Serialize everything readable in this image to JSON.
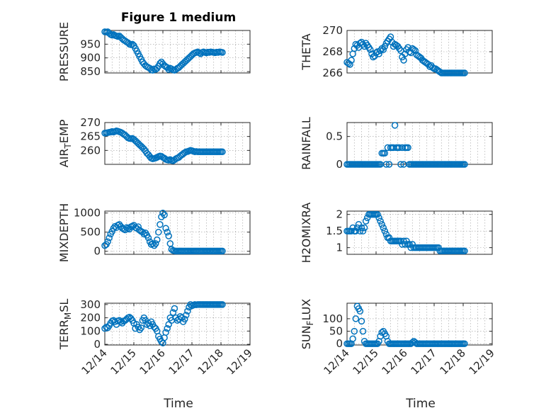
{
  "figure_title": "Figure 1 medium",
  "x_label": "Time",
  "x_tick_labels": [
    "12/14",
    "12/15",
    "12/16",
    "12/17",
    "12/18",
    "12/19"
  ],
  "marker_color": "#0072BD",
  "chart_data": [
    {
      "type": "scatter",
      "ylabel": "PRESSURE",
      "ylim": [
        845,
        1000
      ],
      "yticks": [
        850,
        900,
        950
      ],
      "xlim": [
        0,
        5
      ],
      "grid": true,
      "x": [
        0,
        0.05,
        0.1,
        0.15,
        0.2,
        0.25,
        0.3,
        0.35,
        0.4,
        0.45,
        0.5,
        0.55,
        0.6,
        0.65,
        0.7,
        0.75,
        0.8,
        0.85,
        0.9,
        0.95,
        1.0,
        1.05,
        1.1,
        1.15,
        1.2,
        1.25,
        1.3,
        1.35,
        1.4,
        1.45,
        1.5,
        1.55,
        1.6,
        1.65,
        1.7,
        1.75,
        1.8,
        1.85,
        1.9,
        1.95,
        2.0,
        2.05,
        2.1,
        2.15,
        2.2,
        2.25,
        2.3,
        2.35,
        2.4,
        2.45,
        2.5,
        2.55,
        2.6,
        2.65,
        2.7,
        2.75,
        2.8,
        2.85,
        2.9,
        2.95,
        3.0,
        3.05,
        3.1,
        3.15,
        3.2,
        3.25,
        3.3,
        3.35,
        3.4,
        3.45,
        3.5,
        3.55,
        3.6,
        3.65,
        3.7,
        3.75,
        3.8,
        3.85,
        3.9,
        3.95,
        4.0,
        4.05
      ],
      "y": [
        995,
        994,
        995,
        990,
        985,
        983,
        985,
        982,
        980,
        978,
        980,
        975,
        970,
        965,
        962,
        958,
        955,
        950,
        948,
        950,
        945,
        935,
        925,
        915,
        905,
        895,
        885,
        878,
        872,
        868,
        865,
        862,
        856,
        855,
        860,
        858,
        862,
        870,
        880,
        885,
        878,
        872,
        868,
        865,
        858,
        862,
        860,
        856,
        855,
        858,
        862,
        865,
        870,
        875,
        880,
        885,
        890,
        895,
        900,
        905,
        910,
        915,
        918,
        920,
        922,
        918,
        915,
        920,
        922,
        920,
        918,
        921,
        920,
        922,
        921,
        920,
        919,
        921,
        920,
        922,
        921,
        920
      ]
    },
    {
      "type": "scatter",
      "ylabel": "THETA",
      "ylim": [
        266,
        270
      ],
      "yticks": [
        266,
        268,
        270
      ],
      "xlim": [
        0,
        5
      ],
      "grid": true,
      "x": [
        0,
        0.05,
        0.1,
        0.15,
        0.2,
        0.25,
        0.3,
        0.35,
        0.4,
        0.45,
        0.5,
        0.55,
        0.6,
        0.65,
        0.7,
        0.75,
        0.8,
        0.85,
        0.9,
        0.95,
        1.0,
        1.05,
        1.1,
        1.15,
        1.2,
        1.25,
        1.3,
        1.35,
        1.4,
        1.45,
        1.5,
        1.55,
        1.6,
        1.65,
        1.7,
        1.75,
        1.8,
        1.85,
        1.9,
        1.95,
        2.0,
        2.05,
        2.1,
        2.15,
        2.2,
        2.25,
        2.3,
        2.35,
        2.4,
        2.45,
        2.5,
        2.55,
        2.6,
        2.65,
        2.7,
        2.75,
        2.8,
        2.85,
        2.9,
        2.95,
        3.0,
        3.05,
        3.1,
        3.15,
        3.2,
        3.25,
        3.3,
        3.35,
        3.4,
        3.45,
        3.5,
        3.55,
        3.6,
        3.65,
        3.7,
        3.75,
        3.8,
        3.85,
        3.9,
        3.95,
        4.0,
        4.05
      ],
      "y": [
        267.0,
        266.9,
        266.8,
        267.2,
        267.8,
        268.3,
        268.7,
        268.6,
        268.4,
        268.8,
        268.9,
        268.7,
        268.5,
        268.8,
        268.6,
        268.4,
        268.2,
        267.8,
        267.5,
        267.6,
        267.9,
        268.0,
        267.8,
        268.1,
        268.3,
        268.2,
        268.5,
        268.8,
        269.0,
        269.2,
        269.4,
        268.9,
        268.5,
        268.7,
        268.6,
        268.5,
        268.3,
        268.1,
        267.5,
        267.2,
        267.8,
        268.2,
        268.4,
        268.0,
        267.9,
        268.3,
        268.2,
        268.1,
        267.7,
        267.6,
        267.5,
        267.4,
        267.2,
        267.1,
        267.0,
        266.9,
        266.8,
        266.6,
        266.7,
        266.5,
        266.4,
        266.4,
        266.3,
        266.2,
        266.1,
        266.0,
        266.0,
        266.0,
        266.0,
        266.0,
        266.0,
        266.0,
        266.0,
        266.0,
        266.0,
        266.0,
        266.0,
        266.0,
        266.0,
        266.0,
        266.0,
        266.0
      ]
    },
    {
      "type": "scatter",
      "ylabel": "AIR_TEMP",
      "ylim": [
        255,
        270
      ],
      "yticks": [
        260,
        265,
        270
      ],
      "xlim": [
        0,
        5
      ],
      "grid": true,
      "x": [
        0,
        0.05,
        0.1,
        0.15,
        0.2,
        0.25,
        0.3,
        0.35,
        0.4,
        0.45,
        0.5,
        0.55,
        0.6,
        0.65,
        0.7,
        0.75,
        0.8,
        0.85,
        0.9,
        0.95,
        1.0,
        1.05,
        1.1,
        1.15,
        1.2,
        1.25,
        1.3,
        1.35,
        1.4,
        1.45,
        1.5,
        1.55,
        1.6,
        1.65,
        1.7,
        1.75,
        1.8,
        1.85,
        1.9,
        1.95,
        2.0,
        2.05,
        2.1,
        2.15,
        2.2,
        2.25,
        2.3,
        2.35,
        2.4,
        2.45,
        2.5,
        2.55,
        2.6,
        2.65,
        2.7,
        2.75,
        2.8,
        2.85,
        2.9,
        2.95,
        3.0,
        3.05,
        3.1,
        3.15,
        3.2,
        3.25,
        3.3,
        3.35,
        3.4,
        3.45,
        3.5,
        3.55,
        3.6,
        3.65,
        3.7,
        3.75,
        3.8,
        3.85,
        3.9,
        3.95,
        4.0,
        4.05
      ],
      "y": [
        266.2,
        266.3,
        266.4,
        266.5,
        266.6,
        266.8,
        266.6,
        266.8,
        267.0,
        266.9,
        266.7,
        266.5,
        266.2,
        265.8,
        265.5,
        265.0,
        264.5,
        264.3,
        264.2,
        264.3,
        264.0,
        263.5,
        263.0,
        262.5,
        262.0,
        261.5,
        261.0,
        260.5,
        259.8,
        259.0,
        258.5,
        257.8,
        257.2,
        257.0,
        257.1,
        257.3,
        257.5,
        257.8,
        258.0,
        257.9,
        257.5,
        257.2,
        256.8,
        256.6,
        256.5,
        256.7,
        256.4,
        256.3,
        256.6,
        257.0,
        257.3,
        257.5,
        258.0,
        258.4,
        258.8,
        259.2,
        259.5,
        259.6,
        259.8,
        260.0,
        259.9,
        259.7,
        259.5,
        259.6,
        259.5,
        259.5,
        259.5,
        259.5,
        259.5,
        259.5,
        259.5,
        259.5,
        259.5,
        259.5,
        259.5,
        259.5,
        259.5,
        259.5,
        259.5,
        259.5,
        259.5,
        259.5
      ]
    },
    {
      "type": "scatter",
      "ylabel": "RAINFALL",
      "ylim": [
        0,
        0.75
      ],
      "yticks": [
        0,
        0.5
      ],
      "xlim": [
        0,
        5
      ],
      "grid": true,
      "x": [
        0,
        0.05,
        0.1,
        0.15,
        0.2,
        0.25,
        0.3,
        0.35,
        0.4,
        0.45,
        0.5,
        0.55,
        0.6,
        0.65,
        0.7,
        0.75,
        0.8,
        0.85,
        0.9,
        0.95,
        1.0,
        1.05,
        1.1,
        1.15,
        1.2,
        1.25,
        1.3,
        1.35,
        1.4,
        1.45,
        1.5,
        1.55,
        1.6,
        1.65,
        1.7,
        1.75,
        1.8,
        1.85,
        1.9,
        1.95,
        2.0,
        2.05,
        2.1,
        2.15,
        2.2,
        2.25,
        2.3,
        2.35,
        2.4,
        2.45,
        2.5,
        2.55,
        2.6,
        2.65,
        2.7,
        2.75,
        2.8,
        2.85,
        2.9,
        2.95,
        3.0,
        3.05,
        3.1,
        3.15,
        3.2,
        3.25,
        3.3,
        3.35,
        3.4,
        3.45,
        3.5,
        3.55,
        3.6,
        3.65,
        3.7,
        3.75,
        3.8,
        3.85,
        3.9,
        3.95,
        4.0,
        4.05
      ],
      "y": [
        0,
        0,
        0,
        0,
        0,
        0,
        0,
        0,
        0,
        0,
        0,
        0,
        0,
        0,
        0,
        0,
        0,
        0,
        0,
        0,
        0,
        0,
        0,
        0,
        0.2,
        0.2,
        0.2,
        0,
        0.3,
        0,
        0.3,
        0.3,
        0.3,
        0.7,
        0.3,
        0.3,
        0.3,
        0,
        0.3,
        0,
        0.3,
        0.3,
        0.3,
        0,
        0,
        0,
        0,
        0,
        0,
        0,
        0,
        0,
        0,
        0,
        0,
        0,
        0,
        0,
        0,
        0,
        0,
        0,
        0,
        0,
        0,
        0,
        0,
        0,
        0,
        0,
        0,
        0,
        0,
        0,
        0,
        0,
        0,
        0,
        0,
        0,
        0,
        0
      ]
    },
    {
      "type": "scatter",
      "ylabel": "MIXDEPTH",
      "ylim": [
        -80,
        1050
      ],
      "yticks": [
        0,
        500,
        1000
      ],
      "xlim": [
        0,
        5
      ],
      "grid": true,
      "x": [
        0,
        0.05,
        0.1,
        0.15,
        0.2,
        0.25,
        0.3,
        0.35,
        0.4,
        0.45,
        0.5,
        0.55,
        0.6,
        0.65,
        0.7,
        0.75,
        0.8,
        0.85,
        0.9,
        0.95,
        1.0,
        1.05,
        1.1,
        1.15,
        1.2,
        1.25,
        1.3,
        1.35,
        1.4,
        1.45,
        1.5,
        1.55,
        1.6,
        1.65,
        1.7,
        1.75,
        1.8,
        1.85,
        1.9,
        1.95,
        2.0,
        2.05,
        2.1,
        2.15,
        2.2,
        2.25,
        2.3,
        2.35,
        2.4,
        2.45,
        2.5,
        2.55,
        2.6,
        2.65,
        2.7,
        2.75,
        2.8,
        2.85,
        2.9,
        2.95,
        3.0,
        3.05,
        3.1,
        3.15,
        3.2,
        3.25,
        3.3,
        3.35,
        3.4,
        3.45,
        3.5,
        3.55,
        3.6,
        3.65,
        3.7,
        3.75,
        3.8,
        3.85,
        3.9,
        3.95,
        4.0,
        4.05
      ],
      "y": [
        150,
        180,
        250,
        350,
        450,
        520,
        600,
        650,
        620,
        680,
        700,
        650,
        600,
        580,
        560,
        620,
        600,
        580,
        640,
        660,
        680,
        620,
        600,
        640,
        550,
        520,
        500,
        450,
        480,
        420,
        350,
        250,
        180,
        200,
        150,
        200,
        300,
        500,
        700,
        900,
        1000,
        950,
        600,
        500,
        400,
        200,
        50,
        20,
        10,
        5,
        5,
        5,
        5,
        5,
        5,
        5,
        5,
        5,
        5,
        5,
        5,
        5,
        5,
        5,
        5,
        5,
        5,
        5,
        5,
        5,
        5,
        5,
        5,
        5,
        5,
        5,
        5,
        5,
        5,
        5,
        5,
        5
      ]
    },
    {
      "type": "scatter",
      "ylabel": "H2OMIXRA",
      "ylim": [
        0.8,
        2.1
      ],
      "yticks": [
        1,
        1.5,
        2
      ],
      "xlim": [
        0,
        5
      ],
      "grid": true,
      "x": [
        0,
        0.05,
        0.1,
        0.15,
        0.2,
        0.25,
        0.3,
        0.35,
        0.4,
        0.45,
        0.5,
        0.55,
        0.6,
        0.65,
        0.7,
        0.75,
        0.8,
        0.85,
        0.9,
        0.95,
        1.0,
        1.05,
        1.1,
        1.15,
        1.2,
        1.25,
        1.3,
        1.35,
        1.4,
        1.45,
        1.5,
        1.55,
        1.6,
        1.65,
        1.7,
        1.75,
        1.8,
        1.85,
        1.9,
        1.95,
        2.0,
        2.05,
        2.1,
        2.15,
        2.2,
        2.25,
        2.3,
        2.35,
        2.4,
        2.45,
        2.5,
        2.55,
        2.6,
        2.65,
        2.7,
        2.75,
        2.8,
        2.85,
        2.9,
        2.95,
        3.0,
        3.05,
        3.1,
        3.15,
        3.2,
        3.25,
        3.3,
        3.35,
        3.4,
        3.45,
        3.5,
        3.55,
        3.6,
        3.65,
        3.7,
        3.75,
        3.8,
        3.85,
        3.9,
        3.95,
        4.0,
        4.05
      ],
      "y": [
        1.5,
        1.5,
        1.5,
        1.5,
        1.6,
        1.5,
        1.5,
        1.6,
        1.7,
        1.5,
        1.6,
        1.5,
        1.6,
        1.8,
        1.9,
        2.0,
        2.0,
        2.0,
        2.0,
        2.0,
        2.0,
        2.0,
        1.9,
        1.8,
        1.7,
        1.6,
        1.5,
        1.4,
        1.3,
        1.3,
        1.2,
        1.2,
        1.2,
        1.2,
        1.2,
        1.2,
        1.2,
        1.2,
        1.1,
        1.2,
        1.1,
        1.2,
        1.1,
        1.1,
        1.0,
        1.1,
        1.0,
        1.0,
        1.0,
        1.0,
        1.0,
        1.0,
        1.0,
        1.0,
        1.0,
        1.0,
        1.0,
        1.0,
        1.0,
        1.0,
        1.0,
        1.0,
        1.0,
        1.0,
        0.9,
        0.9,
        0.9,
        0.9,
        0.9,
        0.9,
        0.9,
        0.9,
        0.9,
        0.9,
        0.9,
        0.9,
        0.9,
        0.9,
        0.9,
        0.9,
        0.9,
        0.9
      ]
    },
    {
      "type": "scatter",
      "ylabel": "TERR_MSL",
      "ylim": [
        -5,
        310
      ],
      "yticks": [
        0,
        100,
        200,
        300
      ],
      "xlim": [
        0,
        5
      ],
      "grid": true,
      "x": [
        0,
        0.05,
        0.1,
        0.15,
        0.2,
        0.25,
        0.3,
        0.35,
        0.4,
        0.45,
        0.5,
        0.55,
        0.6,
        0.65,
        0.7,
        0.75,
        0.8,
        0.85,
        0.9,
        0.95,
        1.0,
        1.05,
        1.1,
        1.15,
        1.2,
        1.25,
        1.3,
        1.35,
        1.4,
        1.45,
        1.5,
        1.55,
        1.6,
        1.65,
        1.7,
        1.75,
        1.8,
        1.85,
        1.9,
        1.95,
        2.0,
        2.05,
        2.1,
        2.15,
        2.2,
        2.25,
        2.3,
        2.35,
        2.4,
        2.45,
        2.5,
        2.55,
        2.6,
        2.65,
        2.7,
        2.75,
        2.8,
        2.85,
        2.9,
        2.95,
        3.0,
        3.05,
        3.1,
        3.15,
        3.2,
        3.25,
        3.3,
        3.35,
        3.4,
        3.45,
        3.5,
        3.55,
        3.6,
        3.65,
        3.7,
        3.75,
        3.8,
        3.85,
        3.9,
        3.95,
        4.0,
        4.05
      ],
      "y": [
        120,
        130,
        125,
        140,
        160,
        175,
        180,
        170,
        150,
        175,
        180,
        170,
        160,
        175,
        180,
        190,
        200,
        205,
        195,
        180,
        160,
        120,
        150,
        130,
        110,
        125,
        180,
        200,
        180,
        150,
        160,
        140,
        170,
        150,
        130,
        120,
        100,
        60,
        40,
        20,
        10,
        50,
        90,
        120,
        150,
        200,
        180,
        240,
        270,
        200,
        180,
        190,
        210,
        200,
        170,
        190,
        220,
        250,
        280,
        300,
        290,
        295,
        300,
        298,
        300,
        300,
        300,
        300,
        300,
        300,
        300,
        300,
        300,
        300,
        300,
        300,
        300,
        300,
        300,
        300,
        300,
        300
      ]
    },
    {
      "type": "scatter",
      "ylabel": "SUN_FLUX",
      "ylim": [
        -5,
        162
      ],
      "yticks": [
        0,
        50,
        100
      ],
      "xlim": [
        0,
        5
      ],
      "grid": true,
      "x": [
        0,
        0.05,
        0.1,
        0.15,
        0.2,
        0.25,
        0.3,
        0.35,
        0.4,
        0.45,
        0.5,
        0.55,
        0.6,
        0.65,
        0.7,
        0.75,
        0.8,
        0.85,
        0.9,
        0.95,
        1.0,
        1.05,
        1.1,
        1.15,
        1.2,
        1.25,
        1.3,
        1.35,
        1.4,
        1.45,
        1.5,
        1.55,
        1.6,
        1.65,
        1.7,
        1.75,
        1.8,
        1.85,
        1.9,
        1.95,
        2.0,
        2.05,
        2.1,
        2.15,
        2.2,
        2.25,
        2.3,
        2.35,
        2.4,
        2.45,
        2.5,
        2.55,
        2.6,
        2.65,
        2.7,
        2.75,
        2.8,
        2.85,
        2.9,
        2.95,
        3.0,
        3.05,
        3.1,
        3.15,
        3.2,
        3.25,
        3.3,
        3.35,
        3.4,
        3.45,
        3.5,
        3.55,
        3.6,
        3.65,
        3.7,
        3.75,
        3.8,
        3.85,
        3.9,
        3.95,
        4.0,
        4.05
      ],
      "y": [
        0,
        0,
        0,
        0,
        20,
        50,
        100,
        150,
        140,
        130,
        90,
        50,
        10,
        0,
        0,
        0,
        0,
        0,
        0,
        0,
        0,
        0,
        10,
        30,
        45,
        50,
        40,
        30,
        10,
        0,
        0,
        0,
        0,
        0,
        0,
        0,
        0,
        0,
        0,
        0,
        0,
        0,
        0,
        0,
        0,
        5,
        10,
        5,
        0,
        0,
        0,
        0,
        0,
        0,
        0,
        0,
        0,
        0,
        0,
        0,
        0,
        0,
        0,
        0,
        0,
        0,
        0,
        0,
        0,
        0,
        0,
        0,
        0,
        0,
        0,
        0,
        0,
        0,
        0,
        0,
        0,
        0
      ]
    }
  ]
}
